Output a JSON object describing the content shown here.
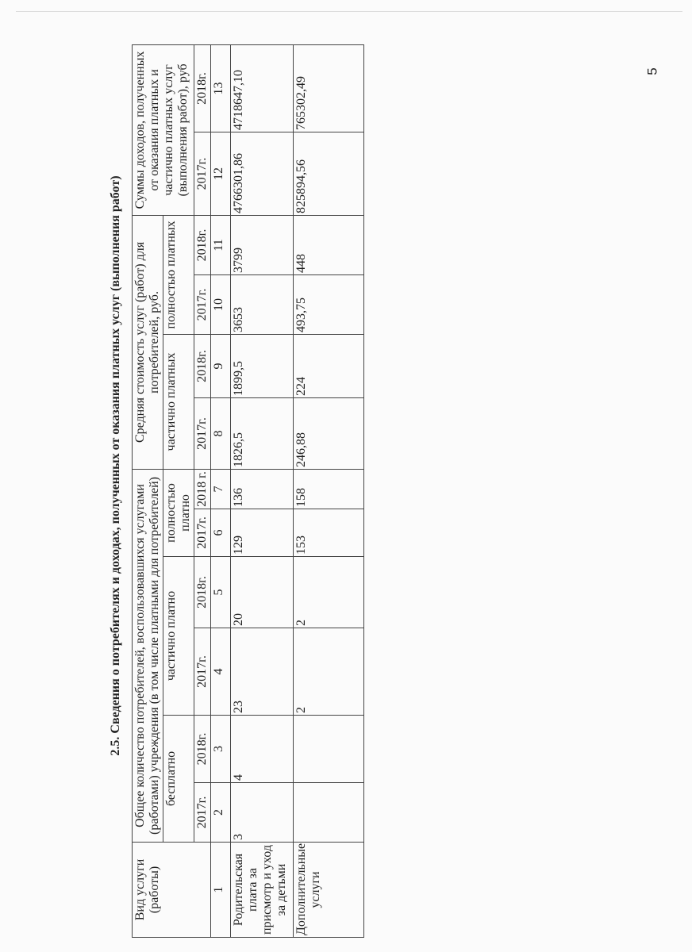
{
  "page_number": "5",
  "title": "2.5. Сведения о потребителях и доходах, полученных от оказания платных услуг (выполнения работ)",
  "headers": {
    "service": "Вид услуги (работы)",
    "consumers": "Общее количество потребителей, воспользовавшихся услугами (работами) учреждения (в том числе платными для потребителей)",
    "free": "бесплатно",
    "partial": "частично платно",
    "full": "полностью платно",
    "avg_cost": "Средняя стоимость услуг (работ) для потребителей, руб.",
    "avg_partial": "частично платных",
    "avg_full": "полностью платных",
    "income": "Суммы доходов, полученных от оказания платных и частично платных услуг (выполнения работ), руб",
    "years": [
      "2017г.",
      "2018г.",
      "2017г.",
      "2018г.",
      "2017г.",
      "2018 г.",
      "2017г.",
      "2018г.",
      "2017г.",
      "2018г.",
      "2017г.",
      "2018г."
    ],
    "numbers": [
      "1",
      "2",
      "3",
      "4",
      "5",
      "6",
      "7",
      "8",
      "9",
      "10",
      "11",
      "12",
      "13"
    ]
  },
  "rows": [
    {
      "cells": [
        "Родительская плата за присмотр и уход за детьми",
        "3",
        "4",
        "23",
        "20",
        "129",
        "136",
        "1826,5",
        "1899,5",
        "3653",
        "3799",
        "4766301,86",
        "4718647,10"
      ]
    },
    {
      "cells": [
        "Дополнительные услуги",
        "",
        "",
        "2",
        "2",
        "153",
        "158",
        "246,88",
        "224",
        "493,75",
        "448",
        "825894,56",
        "765302,49"
      ]
    }
  ]
}
